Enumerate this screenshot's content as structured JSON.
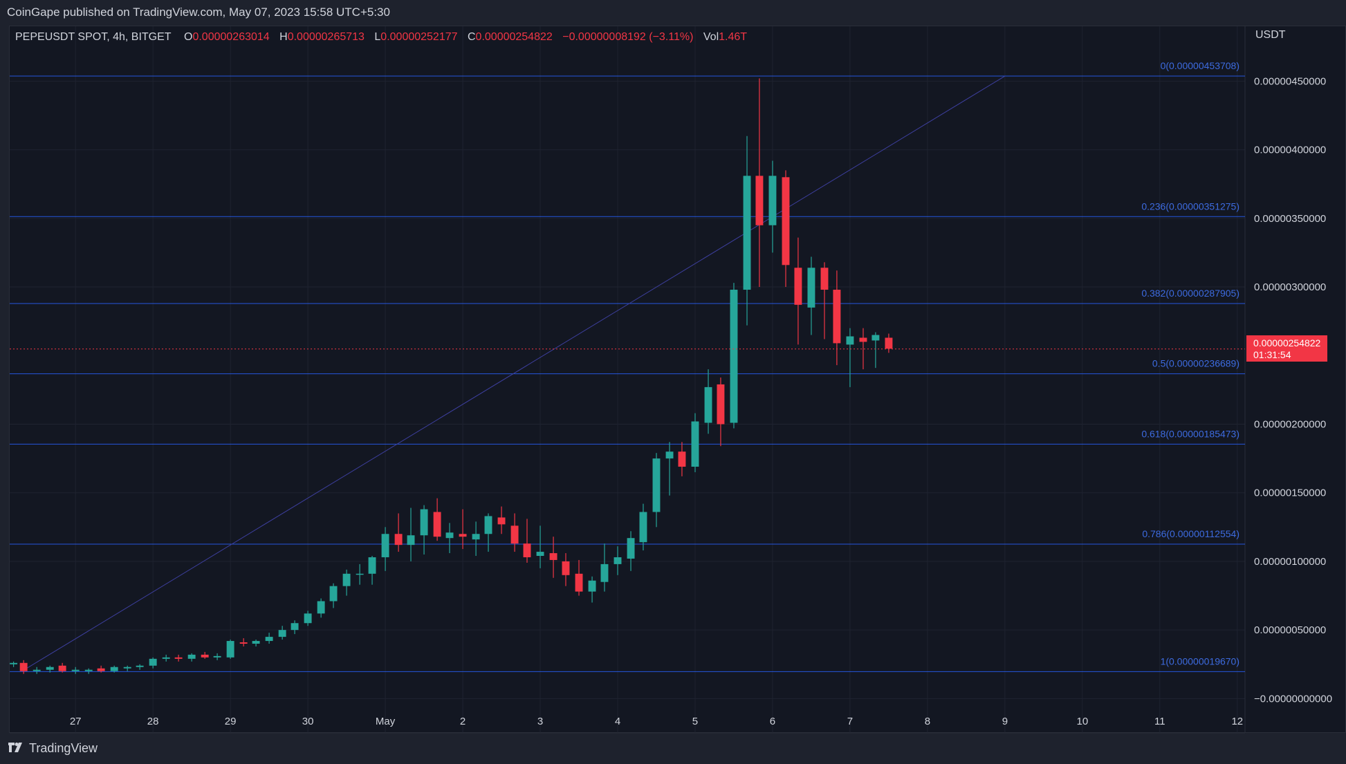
{
  "caption": "CoinGape published on TradingView.com, May 07, 2023 15:58 UTC+5:30",
  "legend": {
    "symbol": "PEPEUSDT SPOT, 4h, BITGET",
    "o_label": "O",
    "o": "0.00000263014",
    "h_label": "H",
    "h": "0.00000265713",
    "l_label": "L",
    "l": "0.00000252177",
    "c_label": "C",
    "c": "0.00000254822",
    "change": "−0.00000008192 (−3.11%)",
    "vol_label": "Vol",
    "vol": "1.46T"
  },
  "axis_unit": "USDT",
  "footer": {
    "brand": "TradingView"
  },
  "current_price": {
    "value": "0.00000254822",
    "countdown": "01:31:54"
  },
  "colors": {
    "up": "#26a69a",
    "down": "#f23645",
    "fib": "#2962ff",
    "background": "#131722"
  },
  "chart_data": {
    "type": "candlestick",
    "interval": "4h",
    "x_tick_labels": [
      {
        "label": "27",
        "day": 27
      },
      {
        "label": "28",
        "day": 28
      },
      {
        "label": "29",
        "day": 29
      },
      {
        "label": "30",
        "day": 30
      },
      {
        "label": "May",
        "day": 31
      },
      {
        "label": "2",
        "day": 32
      },
      {
        "label": "3",
        "day": 33
      },
      {
        "label": "4",
        "day": 34
      },
      {
        "label": "5",
        "day": 35
      },
      {
        "label": "6",
        "day": 36
      },
      {
        "label": "7",
        "day": 37
      },
      {
        "label": "8",
        "day": 38
      },
      {
        "label": "9",
        "day": 39
      },
      {
        "label": "10",
        "day": 40
      },
      {
        "label": "11",
        "day": 41
      },
      {
        "label": "12",
        "day": 42
      }
    ],
    "y_tick_labels": [
      {
        "label": "0.00000450000",
        "value": 4.5e-06
      },
      {
        "label": "0.00000400000",
        "value": 4e-06
      },
      {
        "label": "0.00000350000",
        "value": 3.5e-06
      },
      {
        "label": "0.00000300000",
        "value": 3e-06
      },
      {
        "label": "0.00000200000",
        "value": 2e-06
      },
      {
        "label": "0.00000150000",
        "value": 1.5e-06
      },
      {
        "label": "0.00000100000",
        "value": 1e-06
      },
      {
        "label": "0.00000050000",
        "value": 5e-07
      },
      {
        "label": "−0.00000000000",
        "value": 0
      }
    ],
    "ylim": [
      -2.5e-07,
      4.9e-06
    ],
    "x_range": [
      26.15,
      42.1
    ],
    "fib_levels": [
      {
        "label": "0(0.00000453708)",
        "value": 4.53708e-06
      },
      {
        "label": "0.236(0.00000351275)",
        "value": 3.51275e-06
      },
      {
        "label": "0.382(0.00000287905)",
        "value": 2.87905e-06
      },
      {
        "label": "0.5(0.00000236689)",
        "value": 2.36689e-06
      },
      {
        "label": "0.618(0.00000185473)",
        "value": 1.85473e-06
      },
      {
        "label": "0.786(0.00000112554)",
        "value": 1.12554e-06
      },
      {
        "label": "1(0.00000019670)",
        "value": 1.967e-07
      }
    ],
    "trend_line": {
      "x1": 26.3,
      "y1": 1.967e-07,
      "x2": 39.0,
      "y2": 4.53708e-06
    },
    "candles": [
      [
        26.2,
        2.5e-07,
        2.7e-07,
        2.3e-07,
        2.6e-07
      ],
      [
        26.33,
        2.6e-07,
        2.8e-07,
        1.8e-07,
        2e-07
      ],
      [
        26.5,
        2e-07,
        2.3e-07,
        1.8e-07,
        2.1e-07
      ],
      [
        26.67,
        2.1e-07,
        2.4e-07,
        1.9e-07,
        2.3e-07
      ],
      [
        26.83,
        2.4e-07,
        2.6e-07,
        1.9e-07,
        2e-07
      ],
      [
        27.0,
        2e-07,
        2.3e-07,
        1.8e-07,
        2.1e-07
      ],
      [
        27.17,
        2e-07,
        2.2e-07,
        1.8e-07,
        2.1e-07
      ],
      [
        27.33,
        2.2e-07,
        2.4e-07,
        1.9e-07,
        2e-07
      ],
      [
        27.5,
        2e-07,
        2.4e-07,
        1.9e-07,
        2.3e-07
      ],
      [
        27.67,
        2.2e-07,
        2.4e-07,
        2e-07,
        2.3e-07
      ],
      [
        27.83,
        2.3e-07,
        2.5e-07,
        2.1e-07,
        2.4e-07
      ],
      [
        28.0,
        2.4e-07,
        3e-07,
        2.2e-07,
        2.9e-07
      ],
      [
        28.17,
        2.9e-07,
        3.2e-07,
        2.7e-07,
        3e-07
      ],
      [
        28.33,
        3e-07,
        3.2e-07,
        2.7e-07,
        2.9e-07
      ],
      [
        28.5,
        2.9e-07,
        3.3e-07,
        2.7e-07,
        3.2e-07
      ],
      [
        28.67,
        3.2e-07,
        3.4e-07,
        2.9e-07,
        3e-07
      ],
      [
        28.83,
        3e-07,
        3.3e-07,
        2.8e-07,
        3.1e-07
      ],
      [
        29.0,
        3e-07,
        4.3e-07,
        2.9e-07,
        4.2e-07
      ],
      [
        29.17,
        4.1e-07,
        4.4e-07,
        3.8e-07,
        4e-07
      ],
      [
        29.33,
        4e-07,
        4.3e-07,
        3.8e-07,
        4.2e-07
      ],
      [
        29.5,
        4.2e-07,
        4.8e-07,
        4e-07,
        4.5e-07
      ],
      [
        29.67,
        4.5e-07,
        5.3e-07,
        4.3e-07,
        5e-07
      ],
      [
        29.83,
        5e-07,
        5.7e-07,
        4.7e-07,
        5.5e-07
      ],
      [
        30.0,
        5.5e-07,
        6.4e-07,
        5.3e-07,
        6.2e-07
      ],
      [
        30.17,
        6.2e-07,
        7.3e-07,
        5.9e-07,
        7.1e-07
      ],
      [
        30.33,
        7.1e-07,
        8.4e-07,
        6.6e-07,
        8.2e-07
      ],
      [
        30.5,
        8.2e-07,
        9.4e-07,
        7.5e-07,
        9.1e-07
      ],
      [
        30.67,
        9.1e-07,
        9.8e-07,
        8.3e-07,
        9.1e-07
      ],
      [
        30.83,
        9.1e-07,
        1.04e-06,
        8.3e-07,
        1.03e-06
      ],
      [
        31.0,
        1.03e-06,
        1.25e-06,
        9.3e-07,
        1.2e-06
      ],
      [
        31.17,
        1.2e-06,
        1.35e-06,
        1.07e-06,
        1.12e-06
      ],
      [
        31.33,
        1.12e-06,
        1.39e-06,
        1e-06,
        1.19e-06
      ],
      [
        31.5,
        1.19e-06,
        1.41e-06,
        1.05e-06,
        1.38e-06
      ],
      [
        31.67,
        1.36e-06,
        1.46e-06,
        1.15e-06,
        1.18e-06
      ],
      [
        31.83,
        1.17e-06,
        1.28e-06,
        1.06e-06,
        1.21e-06
      ],
      [
        32.0,
        1.2e-06,
        1.38e-06,
        1.09e-06,
        1.18e-06
      ],
      [
        32.17,
        1.16e-06,
        1.29e-06,
        1.04e-06,
        1.2e-06
      ],
      [
        32.33,
        1.2e-06,
        1.35e-06,
        1.07e-06,
        1.33e-06
      ],
      [
        32.5,
        1.32e-06,
        1.4e-06,
        1.2e-06,
        1.27e-06
      ],
      [
        32.67,
        1.26e-06,
        1.35e-06,
        1.07e-06,
        1.13e-06
      ],
      [
        32.83,
        1.13e-06,
        1.31e-06,
        9.9e-07,
        1.03e-06
      ],
      [
        33.0,
        1.04e-06,
        1.26e-06,
        9.5e-07,
        1.07e-06
      ],
      [
        33.17,
        1.06e-06,
        1.18e-06,
        8.8e-07,
        1.01e-06
      ],
      [
        33.33,
        1e-06,
        1.06e-06,
        8.2e-07,
        9e-07
      ],
      [
        33.5,
        9.1e-07,
        1.01e-06,
        7.5e-07,
        7.8e-07
      ],
      [
        33.67,
        7.8e-07,
        8.9e-07,
        7e-07,
        8.6e-07
      ],
      [
        33.83,
        8.5e-07,
        1.13e-06,
        7.8e-07,
        9.8e-07
      ],
      [
        34.0,
        9.8e-07,
        1.11e-06,
        9e-07,
        1.03e-06
      ],
      [
        34.17,
        1.02e-06,
        1.22e-06,
        9.3e-07,
        1.17e-06
      ],
      [
        34.33,
        1.14e-06,
        1.42e-06,
        1.08e-06,
        1.36e-06
      ],
      [
        34.5,
        1.36e-06,
        1.79e-06,
        1.25e-06,
        1.75e-06
      ],
      [
        34.67,
        1.75e-06,
        1.87e-06,
        1.48e-06,
        1.8e-06
      ],
      [
        34.83,
        1.8e-06,
        1.87e-06,
        1.62e-06,
        1.69e-06
      ],
      [
        35.0,
        1.69e-06,
        2.08e-06,
        1.65e-06,
        2.02e-06
      ],
      [
        35.17,
        2.01e-06,
        2.4e-06,
        1.93e-06,
        2.27e-06
      ],
      [
        35.33,
        2.29e-06,
        2.34e-06,
        1.84e-06,
        2e-06
      ],
      [
        35.5,
        2.01e-06,
        3.03e-06,
        1.97e-06,
        2.98e-06
      ],
      [
        35.67,
        2.98e-06,
        4.1e-06,
        2.72e-06,
        3.81e-06
      ],
      [
        35.83,
        3.81e-06,
        4.52e-06,
        3e-06,
        3.45e-06
      ],
      [
        36.0,
        3.45e-06,
        3.92e-06,
        3.25e-06,
        3.81e-06
      ],
      [
        36.17,
        3.8e-06,
        3.85e-06,
        3e-06,
        3.16e-06
      ],
      [
        36.33,
        3.14e-06,
        3.36e-06,
        2.58e-06,
        2.87e-06
      ],
      [
        36.5,
        2.85e-06,
        3.22e-06,
        2.65e-06,
        3.14e-06
      ],
      [
        36.67,
        3.14e-06,
        3.18e-06,
        2.62e-06,
        2.98e-06
      ],
      [
        36.83,
        2.98e-06,
        3.12e-06,
        2.43e-06,
        2.59e-06
      ],
      [
        37.0,
        2.58e-06,
        2.7e-06,
        2.27e-06,
        2.64e-06
      ],
      [
        37.17,
        2.63e-06,
        2.7e-06,
        2.4e-06,
        2.6e-06
      ],
      [
        37.33,
        2.61e-06,
        2.67e-06,
        2.41e-06,
        2.65e-06
      ],
      [
        37.5,
        2.63e-06,
        2.66e-06,
        2.52e-06,
        2.55e-06
      ]
    ]
  }
}
